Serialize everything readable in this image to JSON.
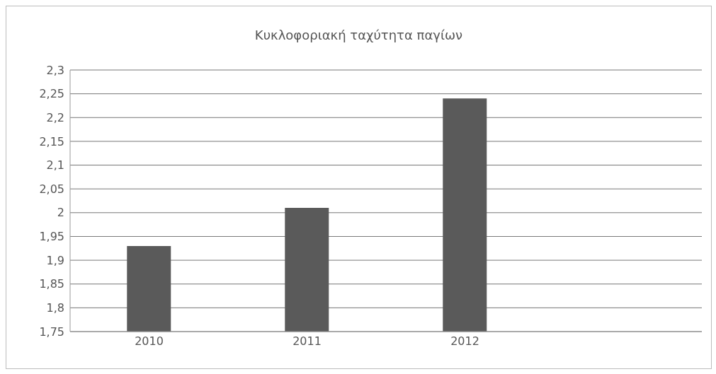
{
  "chart_data": {
    "type": "bar",
    "title": "Κυκλοφοριακή ταχύτητα παγίων",
    "categories": [
      "2010",
      "2011",
      "2012",
      null
    ],
    "values": [
      1.93,
      2.01,
      2.24,
      null
    ],
    "color": "#5a5a5a",
    "ylim": [
      1.75,
      2.3
    ],
    "yticks": [
      {
        "value": 1.75,
        "label": "1,75"
      },
      {
        "value": 1.8,
        "label": "1,8"
      },
      {
        "value": 1.85,
        "label": "1,85"
      },
      {
        "value": 1.9,
        "label": "1,9"
      },
      {
        "value": 1.95,
        "label": "1,95"
      },
      {
        "value": 2,
        "label": "2"
      },
      {
        "value": 2.05,
        "label": "2,05"
      },
      {
        "value": 2.1,
        "label": "2,1"
      },
      {
        "value": 2.15,
        "label": "2,15"
      },
      {
        "value": 2.2,
        "label": "2,2"
      },
      {
        "value": 2.25,
        "label": "2,25"
      },
      {
        "value": 2.3,
        "label": "2,3"
      }
    ],
    "grid": "y"
  }
}
